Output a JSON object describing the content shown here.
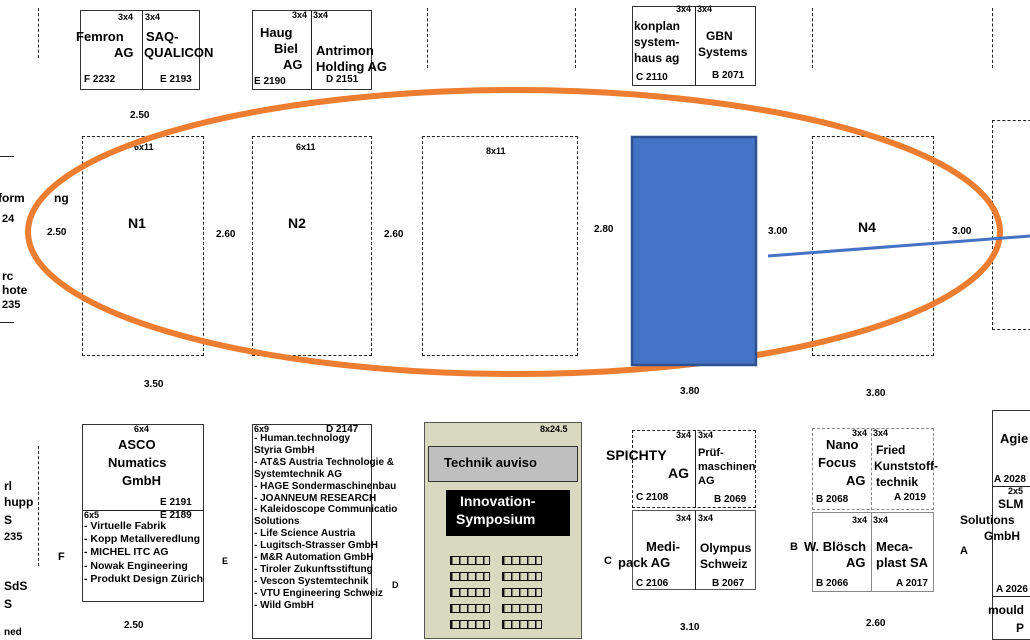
{
  "top_booths": [
    {
      "size": "3x4",
      "name": "Femron AG",
      "code": "F 2232"
    },
    {
      "size": "3x4",
      "name": "SAQ-QUALICON",
      "code": "E 2193"
    },
    {
      "size": "3x4",
      "name": "Haug Biel AG",
      "code": "E 2190"
    },
    {
      "size": "3x4",
      "name": "Antrimon Holding AG",
      "code": "D 2151"
    },
    {
      "size": "3x4",
      "name": "konplan system-haus ag",
      "code": "C 2110"
    },
    {
      "size": "3x4",
      "name": "GBN Systems",
      "code": "B 2071"
    }
  ],
  "top_labels": {
    "femron_line1": "Femron",
    "femron_line2": "AG",
    "saq_line1": "SAQ-",
    "saq_line2": "QUALICON",
    "haug_line1": "Haug",
    "haug_line2": "Biel",
    "haug_line3": "AG",
    "antrimon_line1": "Antrimon",
    "antrimon_line2": "Holding AG",
    "konplan_line1": "konplan",
    "konplan_line2": "system-",
    "konplan_line3": "haus ag",
    "gbn_line1": "GBN",
    "gbn_line2": "Systems"
  },
  "middle_booths": [
    {
      "size": "6x11",
      "name": "N1"
    },
    {
      "size": "6x11",
      "name": "N2"
    },
    {
      "size": "8x11",
      "name": ""
    },
    {
      "size": "",
      "name": "N4"
    }
  ],
  "left_fragments": {
    "a": "form",
    "b": "ng",
    "c": "24",
    "d": "rc",
    "e": "hote",
    "f": "235"
  },
  "aisles": {
    "top": "2.50",
    "a1": "2.50",
    "a2": "2.60",
    "a3": "2.60",
    "a4": "2.80",
    "a5": "3.00",
    "a6": "3.00",
    "bottom1": "3.50",
    "bottom2": "3.80",
    "bottom3": "3.80",
    "low1": "2.50",
    "low2": "3.10",
    "low3": "2.60"
  },
  "asco": {
    "size": "6x4",
    "line1": "ASCO",
    "line2": "Numatics",
    "line3": "GmbH",
    "code": "E 2191"
  },
  "booth_6x5": {
    "size": "6x5",
    "code": "E 2189",
    "items": [
      "- Virtuelle Fabrik",
      "- Kopp Metallveredlung",
      "- MICHEL ITC AG",
      "- Nowak Engineering",
      "- Produkt Design Zürich"
    ],
    "suffix": "E"
  },
  "booth_6x9": {
    "size": "6x9",
    "code": "D 2147",
    "items": [
      "- Human.technology",
      "  Styria GmbH",
      "- AT&S Austria Technologie &",
      "  Systemtechnik AG",
      "- HAGE Sondermaschinenbau",
      "- JOANNEUM RESEARCH",
      "- Kaleidoscope Communicatio",
      "  Solutions",
      "- Life Science Austria",
      "- Lugitsch-Strasser GmbH",
      "- M&R Automation GmbH",
      "- Tiroler Zukunftsstiftung",
      "- Vescon Systemtechnik",
      "- VTU Engineering Schweiz",
      "- Wild GmbH"
    ],
    "suffix": "D"
  },
  "technik": {
    "size": "8x24.5",
    "banner": "Technik auviso",
    "symposium_line1": "Innovation-",
    "symposium_line2": "Symposium"
  },
  "spichty": {
    "size_a": "3x4",
    "size_b": "3x4",
    "name_a_line1": "SPICHTY",
    "name_a_line2": "AG",
    "code_a": "C 2108",
    "name_b_line1": "Prüf-",
    "name_b_line2": "maschinen",
    "name_b_line3": "AG",
    "code_b": "B 2069"
  },
  "medi": {
    "size_a": "3x4",
    "size_b": "3x4",
    "name_a_line1": "Medi-",
    "name_a_line2": "pack AG",
    "prefix_a": "C",
    "code_a": "C 2106",
    "name_b_line1": "Olympus",
    "name_b_line2": "Schweiz",
    "code_b": "B 2067"
  },
  "nano": {
    "size_a": "3x4",
    "size_b": "3x4",
    "name_a_line1": "Nano",
    "name_a_line2": "Focus",
    "name_a_line3": "AG",
    "code_a": "B 2068",
    "name_b_line1": "Fried",
    "name_b_line2": "Kunststoff-",
    "name_b_line3": "technik",
    "code_b": "A 2019"
  },
  "bloesch": {
    "size_a": "3x4",
    "size_b": "3x4",
    "prefix": "B",
    "name_a_line1": "W. Blösch",
    "name_a_line2": "AG",
    "code_a": "B 2066",
    "name_b_line1": "Meca-",
    "name_b_line2": "plast SA",
    "code_b": "A 2017"
  },
  "right_fragments": {
    "agie": "Agie",
    "code1": "A 2028",
    "size": "2x5",
    "slm": "SLM",
    "solutions": "Solutions",
    "gmbh": "GmbH",
    "prefix": "A",
    "code2": "A 2026",
    "mould": "mould",
    "p": "P"
  },
  "left_low_fragments": {
    "a": "rl",
    "b": "hupp",
    "c": "S",
    "d": "235",
    "e": "F",
    "f": "SdS",
    "g": "S",
    "h": "ned"
  },
  "colors": {
    "highlight_ellipse": "#ED7D31",
    "blue_box": "#4472C4",
    "blue_box_border": "#2F528F",
    "line": "#4472C4",
    "technik_bg": "#D9D9C0",
    "banner_bg": "#BFBFBF",
    "symposium_bg": "#000000"
  }
}
